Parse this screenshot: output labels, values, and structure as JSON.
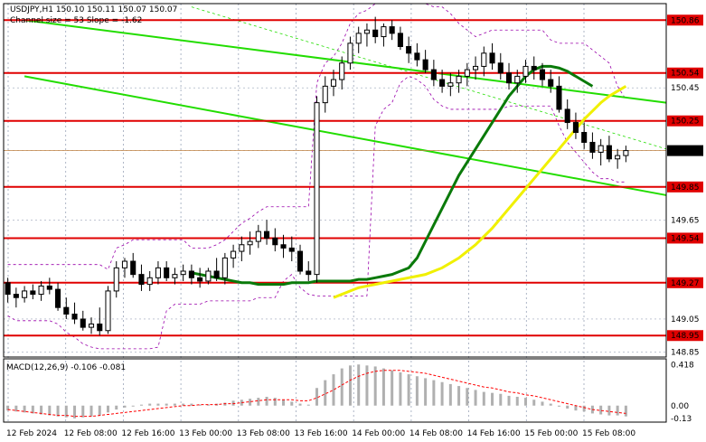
{
  "header": {
    "symbol_line": "USDJPY,H1   150.10 150.11 150.07 150.07",
    "channel_line": "Channel size = 53 Slope = -1.62"
  },
  "macd": {
    "label": "MACD(12,26,9) -0.106 -0.081",
    "ticks": [
      "0.418",
      "0.00",
      "-0.13"
    ]
  },
  "price_axis": {
    "ticks": [
      "150.86",
      "150.54",
      "150.45",
      "150.25",
      "150.07",
      "149.85",
      "149.65",
      "149.54",
      "149.27",
      "149.05",
      "148.95",
      "148.85"
    ],
    "current": "150.07"
  },
  "time_axis": [
    "12 Feb 2024",
    "12 Feb 08:00",
    "12 Feb 16:00",
    "13 Feb 00:00",
    "13 Feb 08:00",
    "13 Feb 16:00",
    "14 Feb 00:00",
    "14 Feb 08:00",
    "14 Feb 16:00",
    "15 Feb 00:00",
    "15 Feb 08:00"
  ],
  "colors": {
    "level": "#e00000",
    "ma_fast": "#0a7a0a",
    "ma_slow": "#f0f000",
    "channel": "#22dd00",
    "bands": "#9900aa",
    "macd_bar": "#b0b0b0",
    "macd_signal": "#ff0000"
  },
  "chart_data": {
    "type": "candlestick",
    "symbol": "USDJPY",
    "timeframe": "H1",
    "ylim": [
      148.82,
      150.96
    ],
    "levels": [
      150.86,
      150.54,
      150.25,
      149.85,
      149.54,
      149.27,
      148.95
    ],
    "candles": [
      [
        149.27,
        149.3,
        149.15,
        149.2
      ],
      [
        149.2,
        149.24,
        149.12,
        149.18
      ],
      [
        149.18,
        149.25,
        149.15,
        149.22
      ],
      [
        149.22,
        149.26,
        149.17,
        149.2
      ],
      [
        149.2,
        149.28,
        149.16,
        149.25
      ],
      [
        149.25,
        149.3,
        149.2,
        149.23
      ],
      [
        149.23,
        149.27,
        149.1,
        149.12
      ],
      [
        149.12,
        149.18,
        149.05,
        149.08
      ],
      [
        149.08,
        149.15,
        149.02,
        149.05
      ],
      [
        149.05,
        149.1,
        148.98,
        149.0
      ],
      [
        149.0,
        149.06,
        148.96,
        149.02
      ],
      [
        149.02,
        149.12,
        148.95,
        148.98
      ],
      [
        148.98,
        149.25,
        148.96,
        149.22
      ],
      [
        149.22,
        149.4,
        149.18,
        149.36
      ],
      [
        149.36,
        149.42,
        149.3,
        149.4
      ],
      [
        149.4,
        149.45,
        149.3,
        149.32
      ],
      [
        149.32,
        149.38,
        149.22,
        149.26
      ],
      [
        149.26,
        149.34,
        149.22,
        149.3
      ],
      [
        149.3,
        149.4,
        149.26,
        149.36
      ],
      [
        149.36,
        149.4,
        149.28,
        149.3
      ],
      [
        149.3,
        149.36,
        149.26,
        149.32
      ],
      [
        149.32,
        149.38,
        149.28,
        149.34
      ],
      [
        149.34,
        149.38,
        149.26,
        149.3
      ],
      [
        149.3,
        149.36,
        149.24,
        149.28
      ],
      [
        149.28,
        149.36,
        149.26,
        149.34
      ],
      [
        149.34,
        149.42,
        149.28,
        149.3
      ],
      [
        149.3,
        149.45,
        149.26,
        149.42
      ],
      [
        149.42,
        149.5,
        149.36,
        149.46
      ],
      [
        149.46,
        149.55,
        149.4,
        149.5
      ],
      [
        149.5,
        149.58,
        149.44,
        149.52
      ],
      [
        149.52,
        149.62,
        149.48,
        149.58
      ],
      [
        149.58,
        149.65,
        149.5,
        149.54
      ],
      [
        149.54,
        149.6,
        149.46,
        149.5
      ],
      [
        149.5,
        149.56,
        149.42,
        149.48
      ],
      [
        149.48,
        149.55,
        149.4,
        149.46
      ],
      [
        149.46,
        149.5,
        149.32,
        149.34
      ],
      [
        149.34,
        149.4,
        149.28,
        149.32
      ],
      [
        149.32,
        150.4,
        149.27,
        150.36
      ],
      [
        150.36,
        150.52,
        150.3,
        150.46
      ],
      [
        150.46,
        150.56,
        150.4,
        150.5
      ],
      [
        150.5,
        150.64,
        150.44,
        150.6
      ],
      [
        150.6,
        150.76,
        150.56,
        150.72
      ],
      [
        150.72,
        150.82,
        150.66,
        150.78
      ],
      [
        150.78,
        150.84,
        150.7,
        150.8
      ],
      [
        150.8,
        150.88,
        150.72,
        150.76
      ],
      [
        150.76,
        150.84,
        150.7,
        150.82
      ],
      [
        150.82,
        150.86,
        150.74,
        150.78
      ],
      [
        150.78,
        150.82,
        150.68,
        150.7
      ],
      [
        150.7,
        150.76,
        150.6,
        150.66
      ],
      [
        150.66,
        150.72,
        150.58,
        150.62
      ],
      [
        150.62,
        150.68,
        150.54,
        150.56
      ],
      [
        150.56,
        150.62,
        150.46,
        150.5
      ],
      [
        150.5,
        150.56,
        150.42,
        150.46
      ],
      [
        150.46,
        150.54,
        150.4,
        150.48
      ],
      [
        150.48,
        150.56,
        150.42,
        150.52
      ],
      [
        150.52,
        150.6,
        150.46,
        150.56
      ],
      [
        150.56,
        150.64,
        150.5,
        150.58
      ],
      [
        150.58,
        150.7,
        150.52,
        150.66
      ],
      [
        150.66,
        150.72,
        150.56,
        150.6
      ],
      [
        150.6,
        150.66,
        150.5,
        150.54
      ],
      [
        150.54,
        150.6,
        150.44,
        150.48
      ],
      [
        150.48,
        150.56,
        150.42,
        150.52
      ],
      [
        150.52,
        150.62,
        150.48,
        150.58
      ],
      [
        150.58,
        150.64,
        150.5,
        150.56
      ],
      [
        150.56,
        150.6,
        150.46,
        150.5
      ],
      [
        150.5,
        150.56,
        150.42,
        150.46
      ],
      [
        150.46,
        150.52,
        150.3,
        150.32
      ],
      [
        150.32,
        150.38,
        150.2,
        150.24
      ],
      [
        150.24,
        150.3,
        150.14,
        150.18
      ],
      [
        150.18,
        150.24,
        150.08,
        150.12
      ],
      [
        150.12,
        150.18,
        150.02,
        150.06
      ],
      [
        150.06,
        150.14,
        149.98,
        150.1
      ],
      [
        150.1,
        150.16,
        150.0,
        150.02
      ],
      [
        150.02,
        150.08,
        149.96,
        150.04
      ],
      [
        150.04,
        150.1,
        150.0,
        150.07
      ]
    ],
    "ma_fast": [
      149.33,
      149.32,
      149.31,
      149.3,
      149.29,
      149.28,
      149.27,
      149.27,
      149.26,
      149.26,
      149.26,
      149.26,
      149.27,
      149.27,
      149.27,
      149.28,
      149.28,
      149.28,
      149.28,
      149.28,
      149.29,
      149.29,
      149.3,
      149.31,
      149.32,
      149.34,
      149.36,
      149.42,
      149.52,
      149.62,
      149.72,
      149.82,
      149.92,
      150.0,
      150.08,
      150.16,
      150.24,
      150.32,
      150.4,
      150.46,
      150.52,
      150.56,
      150.58,
      150.58,
      150.57,
      150.55,
      150.52,
      150.49,
      150.46
    ],
    "ma_slow": [
      149.18,
      149.2,
      149.22,
      149.24,
      149.25,
      149.26,
      149.27,
      149.28,
      149.29,
      149.3,
      149.31,
      149.32,
      149.34,
      149.36,
      149.39,
      149.42,
      149.46,
      149.5,
      149.55,
      149.6,
      149.66,
      149.72,
      149.78,
      149.84,
      149.9,
      149.96,
      150.02,
      150.08,
      150.14,
      150.2,
      150.26,
      150.31,
      150.36,
      150.4,
      150.43,
      150.46
    ],
    "macd_hist": [
      -0.05,
      -0.06,
      -0.07,
      -0.08,
      -0.09,
      -0.1,
      -0.11,
      -0.12,
      -0.13,
      -0.12,
      -0.11,
      -0.1,
      -0.07,
      -0.04,
      -0.02,
      0.0,
      0.01,
      0.02,
      0.02,
      0.02,
      0.02,
      0.02,
      0.02,
      0.01,
      0.01,
      0.02,
      0.03,
      0.05,
      0.06,
      0.07,
      0.08,
      0.09,
      0.08,
      0.06,
      0.04,
      0.02,
      0.01,
      0.18,
      0.26,
      0.32,
      0.38,
      0.41,
      0.42,
      0.41,
      0.4,
      0.38,
      0.36,
      0.34,
      0.32,
      0.3,
      0.28,
      0.26,
      0.24,
      0.22,
      0.2,
      0.18,
      0.16,
      0.14,
      0.13,
      0.12,
      0.1,
      0.09,
      0.08,
      0.06,
      0.04,
      0.02,
      -0.01,
      -0.03,
      -0.05,
      -0.06,
      -0.08,
      -0.09,
      -0.1,
      -0.1,
      -0.11
    ],
    "macd_signal": [
      -0.04,
      -0.05,
      -0.06,
      -0.07,
      -0.08,
      -0.09,
      -0.1,
      -0.1,
      -0.11,
      -0.11,
      -0.11,
      -0.1,
      -0.09,
      -0.08,
      -0.07,
      -0.06,
      -0.05,
      -0.04,
      -0.03,
      -0.02,
      -0.01,
      0.0,
      0.0,
      0.01,
      0.01,
      0.01,
      0.02,
      0.02,
      0.03,
      0.04,
      0.05,
      0.06,
      0.06,
      0.06,
      0.06,
      0.05,
      0.05,
      0.08,
      0.12,
      0.16,
      0.21,
      0.26,
      0.3,
      0.33,
      0.35,
      0.36,
      0.36,
      0.36,
      0.35,
      0.34,
      0.33,
      0.31,
      0.29,
      0.27,
      0.25,
      0.23,
      0.21,
      0.19,
      0.18,
      0.16,
      0.14,
      0.13,
      0.11,
      0.1,
      0.08,
      0.06,
      0.04,
      0.02,
      0.0,
      -0.02,
      -0.04,
      -0.05,
      -0.06,
      -0.07,
      -0.08
    ],
    "macd_ylim": [
      -0.15,
      0.45
    ]
  }
}
